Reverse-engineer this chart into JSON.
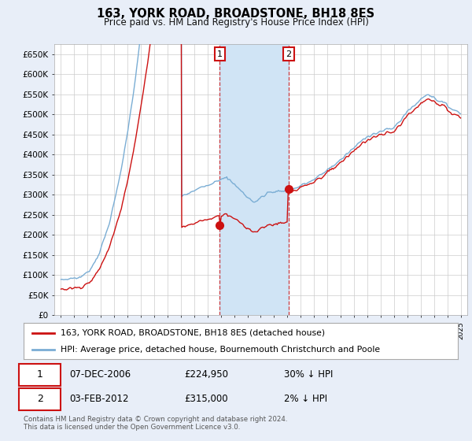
{
  "title": "163, YORK ROAD, BROADSTONE, BH18 8ES",
  "subtitle": "Price paid vs. HM Land Registry's House Price Index (HPI)",
  "ylabel_ticks": [
    0,
    50000,
    100000,
    150000,
    200000,
    250000,
    300000,
    350000,
    400000,
    450000,
    500000,
    550000,
    600000,
    650000
  ],
  "ylim": [
    0,
    675000
  ],
  "xlim_start": 1994.5,
  "xlim_end": 2025.5,
  "hpi_color": "#7aadd4",
  "property_color": "#cc1111",
  "transaction1_date": "07-DEC-2006",
  "transaction1_price": 224950,
  "transaction1_pct": "30% ↓ HPI",
  "transaction1_year": 2006.92,
  "transaction2_date": "03-FEB-2012",
  "transaction2_price": 315000,
  "transaction2_pct": "2% ↓ HPI",
  "transaction2_year": 2012.09,
  "legend_line1": "163, YORK ROAD, BROADSTONE, BH18 8ES (detached house)",
  "legend_line2": "HPI: Average price, detached house, Bournemouth Christchurch and Poole",
  "footer": "Contains HM Land Registry data © Crown copyright and database right 2024.\nThis data is licensed under the Open Government Licence v3.0.",
  "background_color": "#e8eef8",
  "plot_bg": "#ffffff",
  "grid_color": "#cccccc",
  "span_color": "#d0e4f5"
}
